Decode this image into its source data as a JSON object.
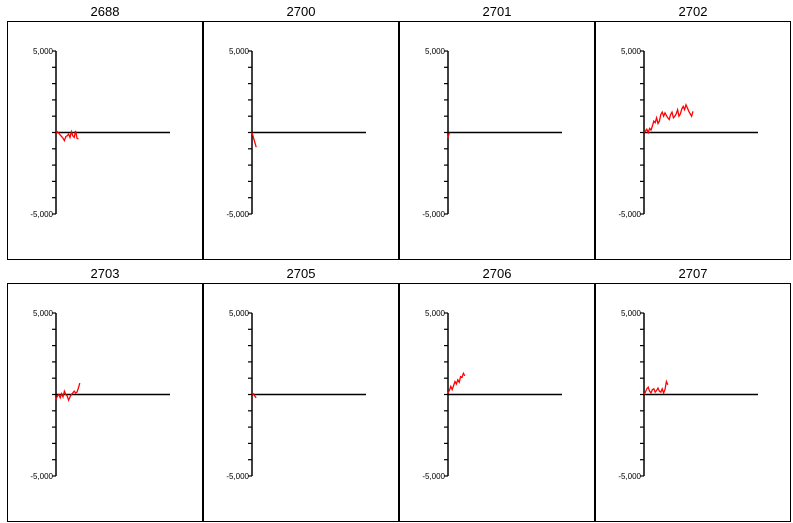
{
  "chart_data": [
    {
      "type": "line",
      "title": "2688",
      "ylim": [
        -5000,
        5000
      ],
      "yticks": [
        "5,000",
        "-5,000"
      ],
      "color": "#ff0000",
      "x": [
        0,
        1,
        2,
        3,
        4,
        5,
        6,
        7,
        8,
        9,
        10,
        11,
        12,
        13,
        14,
        15,
        16
      ],
      "y": [
        0,
        50,
        -50,
        -150,
        -250,
        -350,
        -500,
        -250,
        -200,
        -100,
        -300,
        50,
        -200,
        -300,
        100,
        -350,
        -400
      ]
    },
    {
      "type": "line",
      "title": "2700",
      "ylim": [
        -5000,
        5000
      ],
      "yticks": [
        "5,000",
        "-5,000"
      ],
      "color": "#ff0000",
      "x": [
        0,
        1,
        2,
        3
      ],
      "y": [
        0,
        -300,
        -600,
        -900
      ]
    },
    {
      "type": "line",
      "title": "2701",
      "ylim": [
        -5000,
        5000
      ],
      "yticks": [
        "5,000",
        "-5,000"
      ],
      "color": "#ff0000",
      "x": [
        0,
        1
      ],
      "y": [
        -300,
        0
      ]
    },
    {
      "type": "line",
      "title": "2702",
      "ylim": [
        -5000,
        5000
      ],
      "yticks": [
        "5,000",
        "-5,000"
      ],
      "color": "#ff0000",
      "x": [
        0,
        1,
        2,
        3,
        4,
        5,
        6,
        7,
        8,
        9,
        10,
        11,
        12,
        13,
        14,
        15,
        16,
        17,
        18,
        19,
        20,
        21,
        22,
        23,
        24,
        25,
        26,
        27,
        28,
        29,
        30,
        31,
        32,
        33,
        34,
        35
      ],
      "y": [
        0,
        100,
        200,
        0,
        250,
        150,
        400,
        700,
        600,
        900,
        550,
        700,
        1100,
        1250,
        1000,
        1200,
        1050,
        900,
        800,
        1100,
        1250,
        900,
        1000,
        1150,
        1400,
        1000,
        1150,
        1450,
        1600,
        1400,
        1700,
        1500,
        1300,
        1150,
        1000,
        1300
      ]
    },
    {
      "type": "line",
      "title": "2703",
      "ylim": [
        -5000,
        5000
      ],
      "yticks": [
        "5,000",
        "-5,000"
      ],
      "color": "#ff0000",
      "x": [
        0,
        1,
        2,
        3,
        4,
        5,
        6,
        7,
        8,
        9,
        10,
        11,
        12,
        13,
        14,
        15,
        16,
        17
      ],
      "y": [
        -300,
        -100,
        0,
        -200,
        50,
        -150,
        200,
        0,
        -100,
        -350,
        -150,
        0,
        100,
        200,
        100,
        150,
        400,
        700
      ]
    },
    {
      "type": "line",
      "title": "2705",
      "ylim": [
        -5000,
        5000
      ],
      "yticks": [
        "5,000",
        "-5,000"
      ],
      "color": "#ff0000",
      "x": [
        0,
        1,
        2,
        3
      ],
      "y": [
        0,
        50,
        -100,
        -200
      ]
    },
    {
      "type": "line",
      "title": "2706",
      "ylim": [
        -5000,
        5000
      ],
      "yticks": [
        "5,000",
        "-5,000"
      ],
      "color": "#ff0000",
      "x": [
        0,
        1,
        2,
        3,
        4,
        5,
        6,
        7,
        8,
        9,
        10,
        11,
        12
      ],
      "y": [
        100,
        250,
        500,
        300,
        550,
        800,
        650,
        900,
        750,
        1100,
        1050,
        1300,
        1150
      ]
    },
    {
      "type": "line",
      "title": "2707",
      "ylim": [
        -5000,
        5000
      ],
      "yticks": [
        "5,000",
        "-5,000"
      ],
      "color": "#ff0000",
      "x": [
        0,
        1,
        2,
        3,
        4,
        5,
        6,
        7,
        8,
        9,
        10,
        11,
        12,
        13,
        14,
        15,
        16,
        17
      ],
      "y": [
        0,
        150,
        350,
        450,
        200,
        100,
        300,
        350,
        150,
        250,
        400,
        200,
        150,
        350,
        100,
        300,
        800,
        600
      ]
    }
  ]
}
